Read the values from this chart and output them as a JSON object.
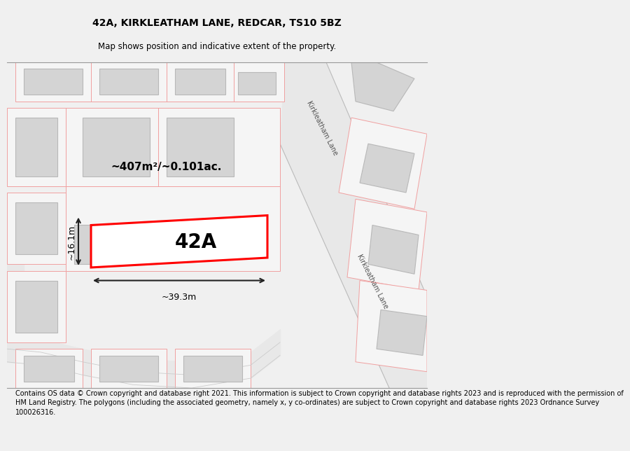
{
  "title": "42A, KIRKLEATHAM LANE, REDCAR, TS10 5BZ",
  "subtitle": "Map shows position and indicative extent of the property.",
  "footer": "Contains OS data © Crown copyright and database right 2021. This information is subject to Crown copyright and database rights 2023 and is reproduced with the permission of\nHM Land Registry. The polygons (including the associated geometry, namely x, y co-ordinates) are subject to Crown copyright and database rights 2023 Ordnance Survey\n100026316.",
  "bg_color": "#f0f0f0",
  "map_bg": "#ffffff",
  "plot_edge": "#ff0000",
  "plot_label": "42A",
  "dim_color": "#222222",
  "area_label": "~407m²/~0.101ac.",
  "width_label": "~39.3m",
  "height_label": "~16.1m",
  "road_label_top": "Kirkleatham Lane",
  "road_label_bottom": "Kirkleatham Lane"
}
